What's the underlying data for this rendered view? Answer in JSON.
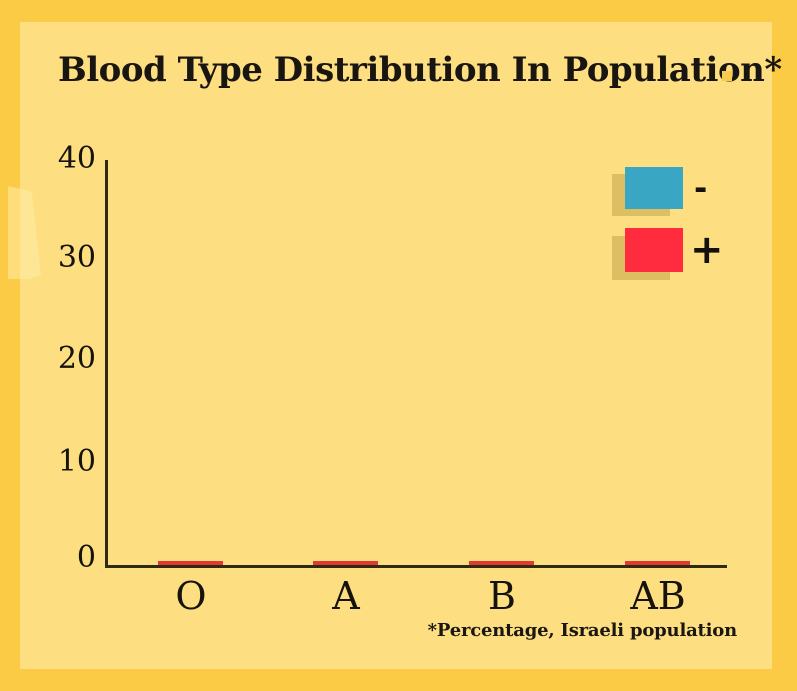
{
  "colors": {
    "background_border": "#FCCB46",
    "panel": "#FDDE80",
    "axis": "#2e2a16",
    "text": "#16130d",
    "legend_shadow": "#DDBE63",
    "bar_sliver_red": "#E23A31"
  },
  "chart_data": {
    "type": "bar",
    "title": "Blood Type Distribution In Population*",
    "footnote": "*Percentage, Israeli population",
    "categories": [
      "O",
      "A",
      "B",
      "AB"
    ],
    "series": [
      {
        "name": "-",
        "color": "#39A7C4",
        "values": [
          0,
          0,
          0,
          0
        ]
      },
      {
        "name": "+",
        "color": "#FF2B3E",
        "values": [
          0.4,
          0.4,
          0.4,
          0.4
        ]
      }
    ],
    "xlabel": "",
    "ylabel": "",
    "ylim": [
      0,
      40
    ],
    "yticks": [
      0,
      10,
      20,
      30,
      40
    ],
    "grid": false,
    "legend_position": "top-right"
  }
}
